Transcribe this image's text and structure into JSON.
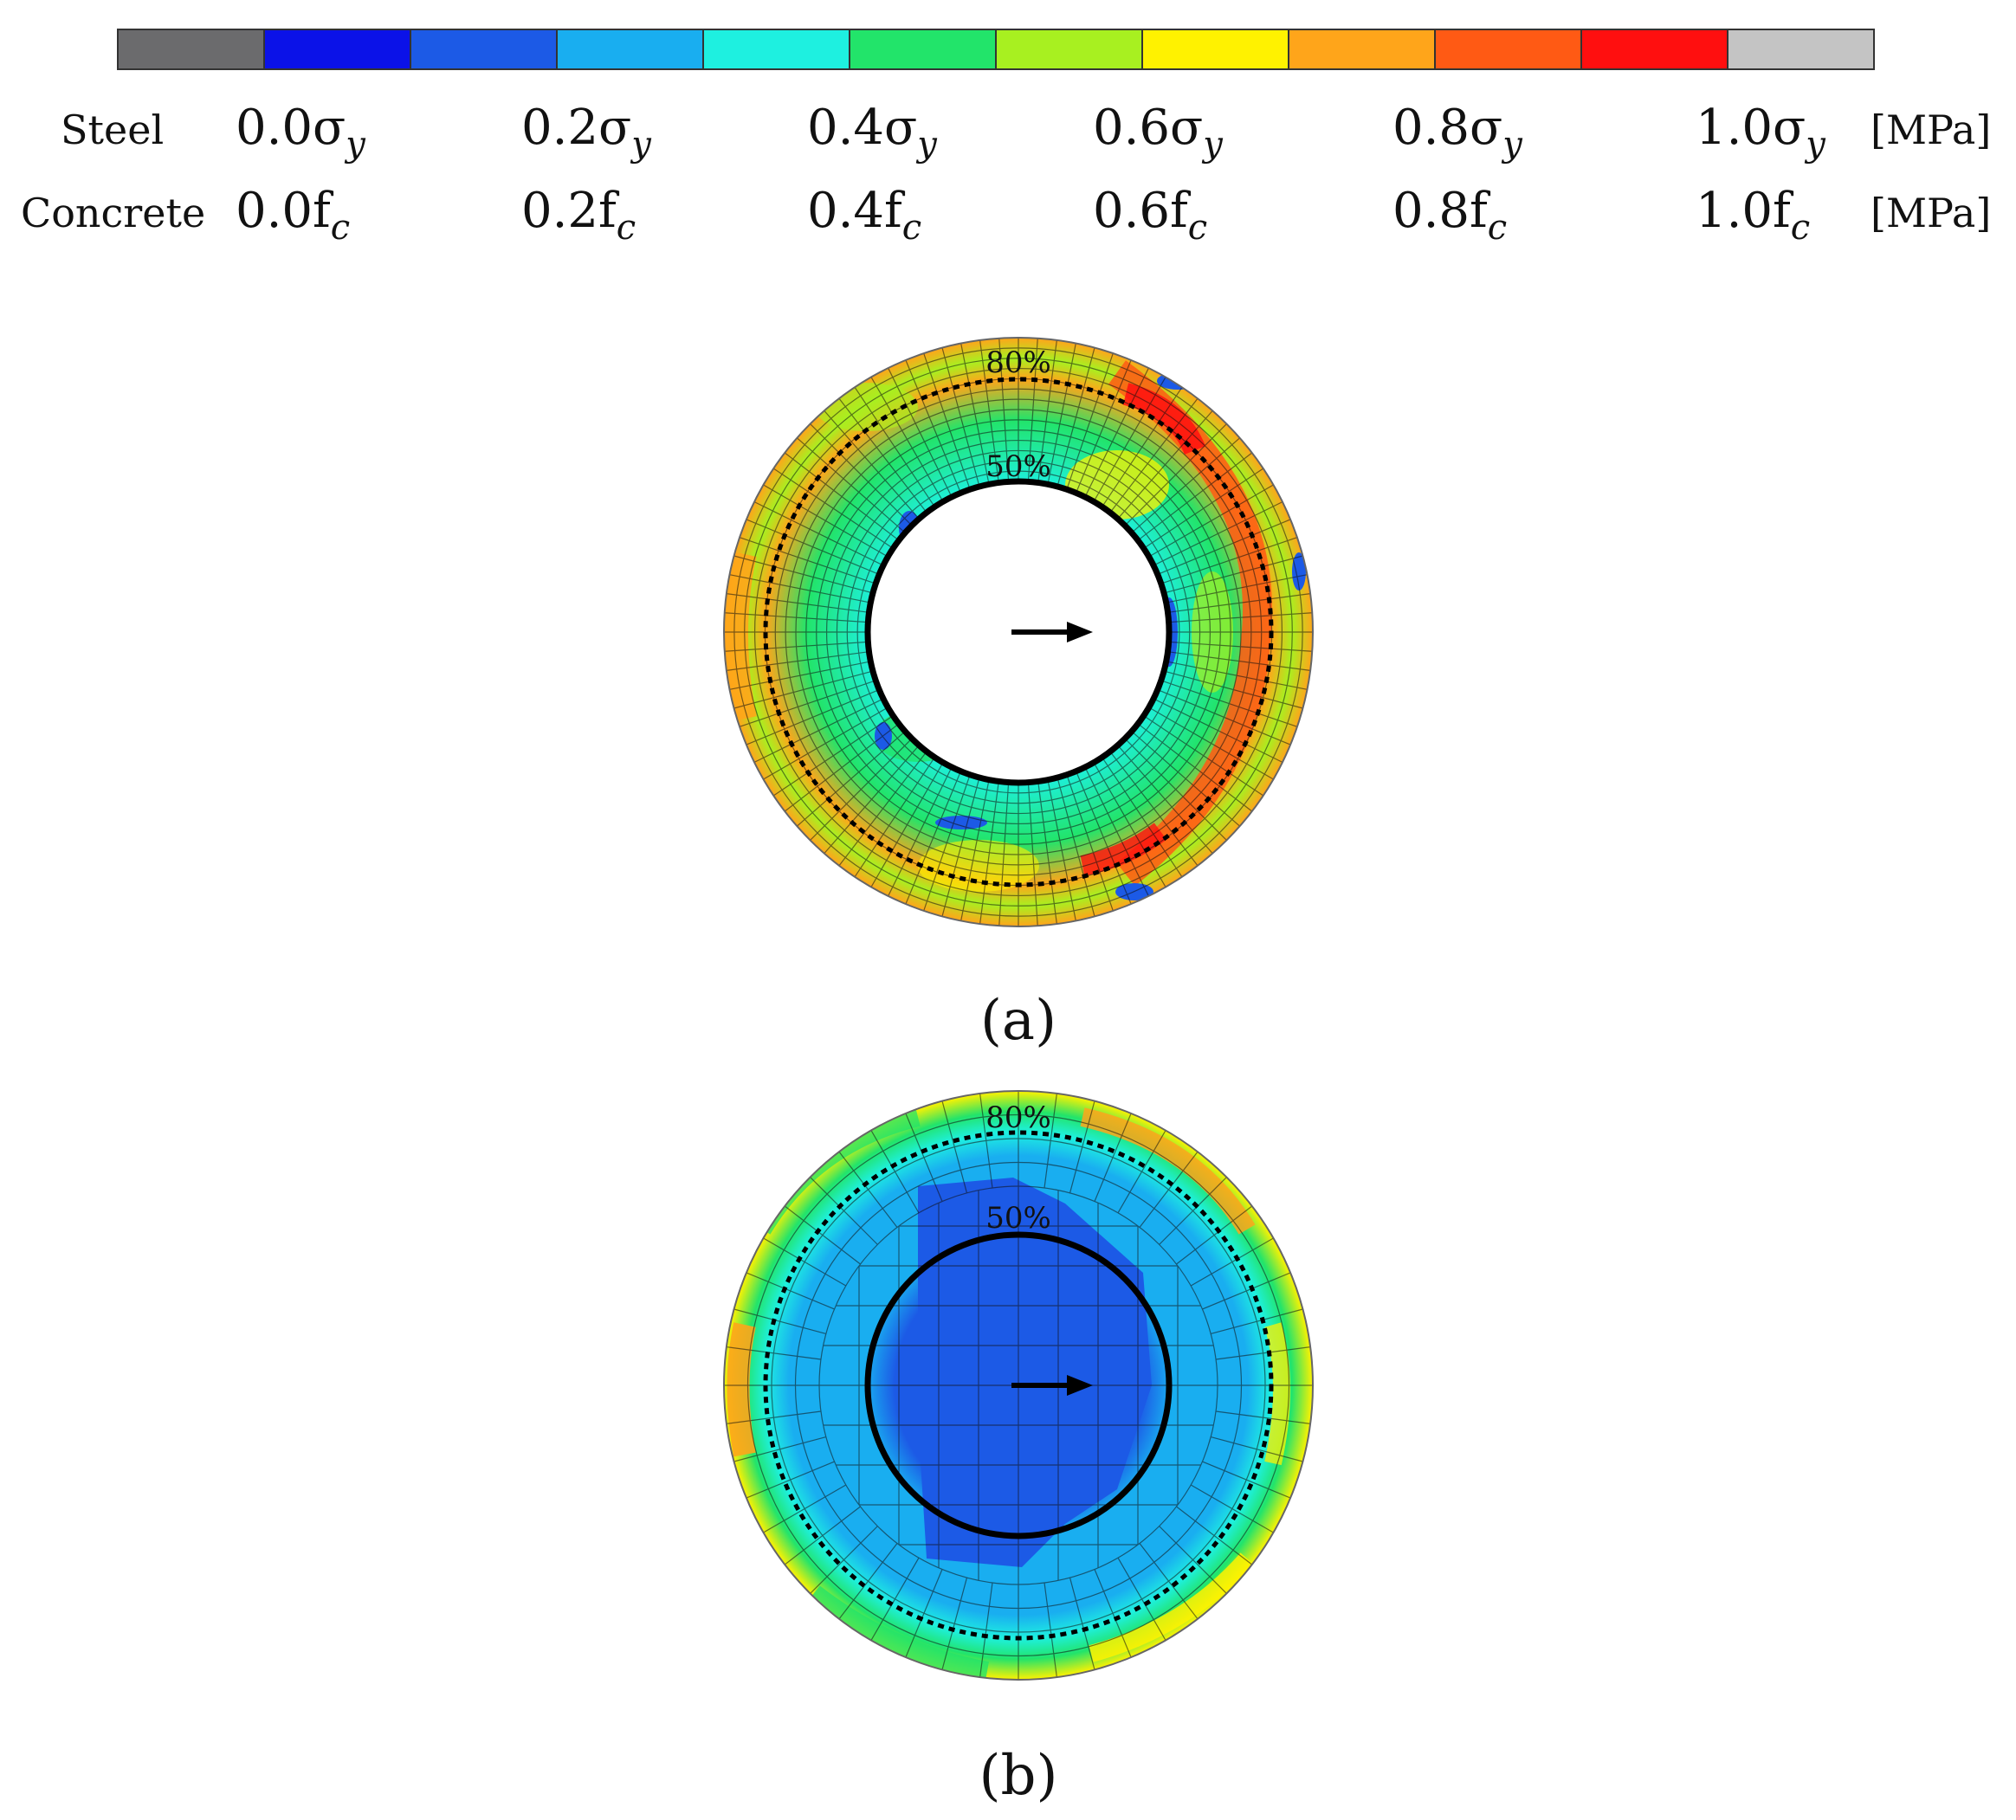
{
  "colorbar": {
    "colors": [
      "#6b6b6d",
      "#0b12e8",
      "#1c5ae6",
      "#19aef0",
      "#1ef0e0",
      "#22e46a",
      "#a8f020",
      "#fff200",
      "#ffa51a",
      "#ff5a14",
      "#ff0f0f",
      "#c4c4c4"
    ],
    "rows": [
      {
        "name": "Steel",
        "ticks": [
          "0.0σ",
          "0.2σ",
          "0.4σ",
          "0.6σ",
          "0.8σ",
          "1.0σ"
        ],
        "subscript": "y",
        "unit": "[MPa]"
      },
      {
        "name": "Concrete",
        "ticks": [
          "0.0f",
          "0.2f",
          "0.4f",
          "0.6f",
          "0.8f",
          "1.0f"
        ],
        "subscript": "c",
        "unit": "[MPa]"
      }
    ]
  },
  "panels": [
    {
      "caption": "(a)",
      "outer_ring_label": "80%",
      "inner_ring_label": "50%",
      "hollow": true,
      "arrow_direction": "right"
    },
    {
      "caption": "(b)",
      "outer_ring_label": "80%",
      "inner_ring_label": "50%",
      "hollow": false,
      "arrow_direction": "right"
    }
  ]
}
